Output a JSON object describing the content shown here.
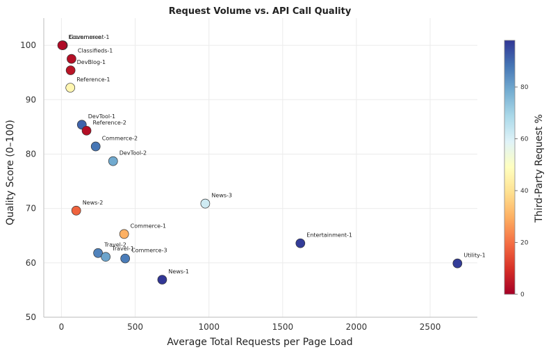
{
  "chart_data": {
    "type": "scatter",
    "title": "Request Volume vs. API Call Quality",
    "xlabel": "Average Total Requests per Page Load",
    "ylabel": "Quality Score (0–100)",
    "xlim": [
      -120,
      2820
    ],
    "ylim": [
      50,
      105
    ],
    "xticks": [
      0,
      500,
      1000,
      1500,
      2000,
      2500
    ],
    "yticks": [
      50,
      60,
      70,
      80,
      90,
      100
    ],
    "grid": true,
    "colorbar": {
      "label": "Third-Party Request %",
      "range": [
        0,
        98
      ],
      "ticks": [
        0,
        20,
        40,
        60,
        80
      ],
      "colormap": "RdYlBu"
    },
    "points": [
      {
        "label": "Government-1",
        "x": 10,
        "y": 100,
        "c": 1
      },
      {
        "label": "Ecommerce",
        "x": 5,
        "y": 100,
        "c": 2
      },
      {
        "label": "Classifieds-1",
        "x": 68,
        "y": 97.5,
        "c": 3
      },
      {
        "label": "DevBlog-1",
        "x": 62,
        "y": 95.4,
        "c": 4
      },
      {
        "label": "Reference-1",
        "x": 60,
        "y": 92.2,
        "c": 46
      },
      {
        "label": "DevTool-1",
        "x": 138,
        "y": 85.4,
        "c": 91
      },
      {
        "label": "Reference-2",
        "x": 170,
        "y": 84.3,
        "c": 3
      },
      {
        "label": "Commerce-2",
        "x": 232,
        "y": 81.4,
        "c": 88
      },
      {
        "label": "DevTool-2",
        "x": 350,
        "y": 78.7,
        "c": 79
      },
      {
        "label": "News-3",
        "x": 975,
        "y": 70.9,
        "c": 62
      },
      {
        "label": "News-2",
        "x": 100,
        "y": 69.6,
        "c": 18
      },
      {
        "label": "Commerce-1",
        "x": 425,
        "y": 65.3,
        "c": 30
      },
      {
        "label": "Entertainment-1",
        "x": 1620,
        "y": 63.6,
        "c": 97
      },
      {
        "label": "Travel-2",
        "x": 248,
        "y": 61.8,
        "c": 86
      },
      {
        "label": "Travel-1",
        "x": 300,
        "y": 61.1,
        "c": 80
      },
      {
        "label": "Commerce-3",
        "x": 432,
        "y": 60.8,
        "c": 87
      },
      {
        "label": "Utility-1",
        "x": 2685,
        "y": 59.9,
        "c": 97
      },
      {
        "label": "News-1",
        "x": 683,
        "y": 56.9,
        "c": 98
      }
    ]
  }
}
